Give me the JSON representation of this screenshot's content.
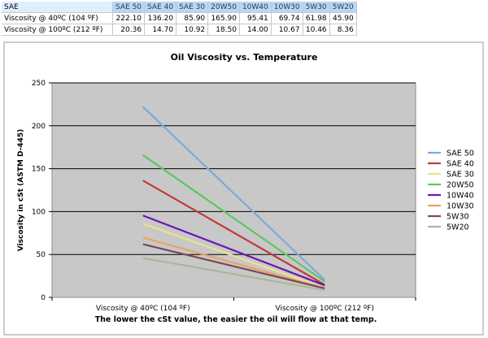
{
  "table": {
    "header_label": "SAE",
    "columns": [
      "SAE 50",
      "SAE 40",
      "SAE 30",
      "20W50",
      "10W40",
      "10W30",
      "5W30",
      "5W20"
    ],
    "rows": [
      {
        "label": "Viscosity @ 40ºC (104 ºF)",
        "values": [
          "222.10",
          "136.20",
          "85.90",
          "165.90",
          "95.41",
          "69.74",
          "61.98",
          "45.90"
        ]
      },
      {
        "label": "Viscosity @ 100ºC (212 ºF)",
        "values": [
          "20.36",
          "14.70",
          "10.92",
          "18.50",
          "14.00",
          "10.67",
          "10.46",
          "8.36"
        ]
      }
    ]
  },
  "chart_data": {
    "type": "line",
    "title": "Oil Viscosity vs. Temperature",
    "ylabel": "Viscosity in cSt (ASTM D-445)",
    "xlabel": "The lower the cSt value, the easier the oil will flow at that temp.",
    "categories": [
      "Viscosity @ 40ºC (104 ºF)",
      "Viscosity @ 100ºC (212 ºF)"
    ],
    "ylim": [
      0,
      250
    ],
    "yticks": [
      0,
      50,
      100,
      150,
      200,
      250
    ],
    "grid": true,
    "legend_position": "right",
    "series": [
      {
        "name": "SAE 50",
        "values": [
          222.1,
          20.36
        ],
        "color": "#7fa9d9"
      },
      {
        "name": "SAE 40",
        "values": [
          136.2,
          14.7
        ],
        "color": "#c23a3a"
      },
      {
        "name": "SAE 30",
        "values": [
          85.9,
          10.92
        ],
        "color": "#ece28c"
      },
      {
        "name": "20W50",
        "values": [
          165.9,
          18.5
        ],
        "color": "#5fc65f"
      },
      {
        "name": "10W40",
        "values": [
          95.41,
          14.0
        ],
        "color": "#6a17b5"
      },
      {
        "name": "10W30",
        "values": [
          69.74,
          10.67
        ],
        "color": "#e8a26a"
      },
      {
        "name": "5W30",
        "values": [
          61.98,
          10.46
        ],
        "color": "#7a4a52"
      },
      {
        "name": "5W20",
        "values": [
          45.9,
          8.36
        ],
        "color": "#a8b89a"
      }
    ]
  }
}
